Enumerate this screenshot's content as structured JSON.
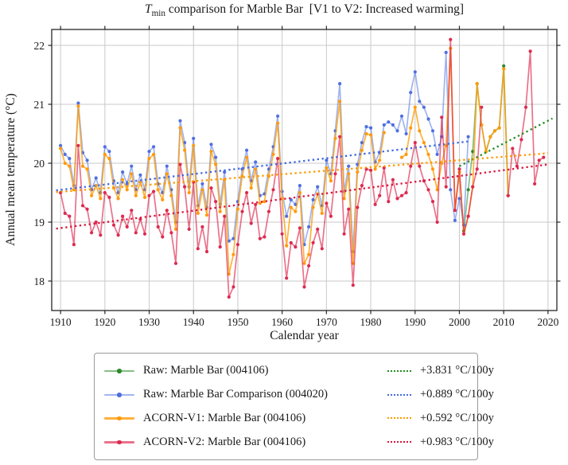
{
  "title": {
    "math_t": "T",
    "math_sub": "min",
    "rest": " comparison for Marble Bar  [V1 to V2: Increased warming]"
  },
  "colors": {
    "grid": "#c9c9c9",
    "spine": "#262626",
    "tick_text": "#1a1a1a",
    "green_line": "rgba(34,139,34,0.55)",
    "green_marker": "#2a8b2a",
    "green_trend": "#228B22",
    "blue_line": "rgba(65,105,225,0.5)",
    "blue_marker": "#4f6fe0",
    "blue_trend": "#4169E1",
    "orange_line": "rgba(255,158,10,0.8)",
    "orange_marker": "#ff9a0e",
    "orange_trend": "#FF9800",
    "red_line": "rgba(220,20,60,0.6)",
    "red_marker": "#dc2a50",
    "red_trend": "#DC143C"
  },
  "legend": {
    "rows": [
      {
        "series_label": "Raw: Marble Bar (004106)",
        "trend_label": "+3.831 °C/100y",
        "line": "rgba(34,139,34,0.55)",
        "marker": "#2a8b2a",
        "trend_color": "#228B22"
      },
      {
        "series_label": "Raw: Marble Bar Comparison (004020)",
        "trend_label": "+0.889 °C/100y",
        "line": "rgba(65,105,225,0.5)",
        "marker": "#4f6fe0",
        "trend_color": "#4169E1"
      },
      {
        "series_label": "ACORN-V1: Marble Bar (004106)",
        "trend_label": "+0.592 °C/100y",
        "line": "rgba(255,158,10,0.8)",
        "marker": "#ff9a0e",
        "trend_color": "#FF9800"
      },
      {
        "series_label": "ACORN-V2: Marble Bar (004106)",
        "trend_label": "+0.983 °C/100y",
        "line": "rgba(220,20,60,0.6)",
        "marker": "#dc2a50",
        "trend_color": "#DC143C"
      }
    ]
  },
  "chart_data": {
    "type": "line",
    "title": "Tmin comparison for Marble Bar [V1 to V2: Increased warming]",
    "xlabel": "Calendar year",
    "ylabel": "Annual mean temperature (°C)",
    "xlim": [
      1908,
      2022
    ],
    "ylim": [
      17.5,
      22.27
    ],
    "xticks": [
      1910,
      1920,
      1930,
      1940,
      1950,
      1960,
      1970,
      1980,
      1990,
      2000,
      2010,
      2020
    ],
    "yticks": [
      18,
      19,
      20,
      21,
      22
    ],
    "grid": true,
    "legend_position": "below",
    "series": [
      {
        "name": "Raw: Marble Bar (004106)",
        "line": "rgba(34,139,34,0.55)",
        "marker": "#2a8b2a",
        "segments": [
          {
            "start_year": 2001,
            "values": [
              18.85,
              19.55,
              20.2,
              21.35,
              20.65,
              20.2,
              20.45,
              20.55,
              20.6,
              21.65,
              19.45
            ]
          }
        ]
      },
      {
        "name": "Raw: Marble Bar Comparison (004020)",
        "line": "rgba(65,105,225,0.5)",
        "marker": "#4f6fe0",
        "segments": [
          {
            "start_year": 1910,
            "values": [
              20.3,
              20.15,
              20.08,
              19.62,
              21.02,
              20.18,
              20.05,
              19.55,
              19.75,
              19.5,
              20.28,
              20.2,
              19.7,
              19.5,
              19.85,
              19.65,
              19.95,
              19.55,
              19.8,
              19.55,
              20.2,
              20.28,
              19.65,
              19.5,
              19.95,
              19.55,
              19.0,
              20.72,
              20.35,
              19.6,
              20.42,
              19.28,
              19.65,
              19.25,
              20.32,
              20.1,
              19.3,
              19.85,
              18.68,
              18.72,
              19.35,
              19.9,
              20.22,
              19.7,
              20.02,
              19.45,
              19.48,
              19.9,
              20.28,
              20.8,
              19.52,
              19.1,
              19.38,
              19.3,
              19.62,
              18.62,
              18.92,
              19.38,
              19.6,
              19.28,
              20.05,
              19.82,
              20.55,
              21.35,
              19.52,
              19.95,
              18.5,
              19.98,
              20.35,
              20.62,
              20.6,
              20.02,
              20.18,
              20.65,
              20.7,
              20.65,
              20.55,
              20.8,
              20.5,
              21.2,
              21.55,
              21.05,
              20.95,
              20.75,
              20.55,
              20.15,
              20.45,
              21.88,
              19.55,
              19.03,
              19.4,
              18.95,
              20.45
            ]
          }
        ]
      },
      {
        "name": "ACORN-V1: Marble Bar (004106)",
        "line": "rgba(255,158,10,0.8)",
        "marker": "#ff9a0e",
        "segments": [
          {
            "start_year": 1910,
            "values": [
              20.25,
              20.0,
              19.95,
              19.55,
              20.97,
              19.95,
              19.9,
              19.45,
              19.62,
              19.4,
              20.15,
              20.08,
              19.58,
              19.4,
              19.72,
              19.55,
              19.82,
              19.45,
              19.68,
              19.42,
              20.08,
              20.15,
              19.55,
              19.38,
              19.82,
              19.45,
              18.88,
              20.6,
              20.22,
              19.5,
              20.3,
              19.15,
              19.55,
              19.12,
              20.2,
              19.98,
              19.18,
              19.72,
              18.12,
              18.45,
              19.22,
              19.78,
              20.1,
              19.58,
              19.9,
              19.32,
              19.35,
              19.78,
              20.15,
              20.68,
              19.4,
              18.6,
              19.25,
              19.18,
              19.5,
              18.3,
              18.45,
              19.25,
              19.48,
              19.15,
              19.92,
              19.7,
              20.42,
              21.05,
              19.4,
              19.82,
              18.3,
              19.85,
              20.22,
              20.5,
              20.48,
              19.9,
              20.05,
              20.52
            ]
          },
          {
            "start_year": 1987,
            "values": [
              20.1,
              20.15,
              20.6,
              20.95,
              20.55,
              20.35,
              20.15,
              19.9,
              19.55,
              20.0,
              20.3,
              21.95,
              19.2,
              19.85,
              18.8,
              19.1,
              19.6,
              21.35,
              20.65,
              20.2,
              20.45,
              20.55,
              20.6,
              21.6,
              19.45
            ]
          }
        ]
      },
      {
        "name": "ACORN-V2: Marble Bar (004106)",
        "line": "rgba(220,20,60,0.6)",
        "marker": "#dc2a50",
        "segments": [
          {
            "start_year": 1910,
            "values": [
              19.5,
              19.15,
              19.1,
              18.62,
              20.3,
              19.28,
              19.22,
              18.82,
              19.0,
              18.78,
              19.5,
              19.42,
              18.95,
              18.78,
              19.1,
              18.92,
              19.2,
              18.82,
              19.05,
              18.8,
              19.45,
              19.52,
              18.92,
              18.75,
              19.2,
              18.82,
              18.3,
              19.98,
              19.6,
              18.88,
              19.68,
              18.55,
              18.92,
              18.5,
              19.58,
              19.35,
              18.58,
              19.1,
              17.73,
              17.9,
              18.62,
              19.18,
              19.5,
              18.98,
              19.3,
              18.72,
              18.75,
              19.18,
              19.55,
              20.08,
              18.8,
              18.05,
              18.65,
              18.58,
              18.9,
              17.9,
              18.26,
              18.65,
              18.88,
              18.55,
              19.32,
              19.1,
              19.82,
              20.45,
              18.8,
              19.22,
              17.93,
              19.25,
              19.62,
              19.9,
              19.88,
              19.3,
              19.45,
              19.92,
              19.35,
              19.72,
              19.4,
              19.45,
              19.5,
              19.95,
              20.35,
              19.95,
              19.7,
              19.55,
              19.35,
              19.0,
              20.78,
              19.6,
              22.1,
              19.2,
              19.9,
              18.8,
              19.1,
              19.6,
              19.9,
              20.95
            ]
          },
          {
            "start_year": 2011,
            "values": [
              19.45,
              20.25,
              19.95,
              20.4,
              20.95,
              21.9,
              19.65,
              20.05,
              20.1
            ]
          }
        ]
      }
    ],
    "trends": [
      {
        "label": "+3.831 °C/100y",
        "color": "#228B22",
        "x": [
          2000,
          2021
        ],
        "y": [
          19.95,
          20.76
        ]
      },
      {
        "label": "+0.889 °C/100y",
        "color": "#4169E1",
        "x": [
          1909,
          2002
        ],
        "y": [
          19.54,
          20.37
        ]
      },
      {
        "label": "+0.592 °C/100y",
        "color": "#FF9800",
        "x": [
          1909,
          2020
        ],
        "y": [
          19.51,
          20.17
        ]
      },
      {
        "label": "+0.983 °C/100y",
        "color": "#DC143C",
        "x": [
          1909,
          2020
        ],
        "y": [
          18.89,
          19.98
        ]
      }
    ]
  }
}
